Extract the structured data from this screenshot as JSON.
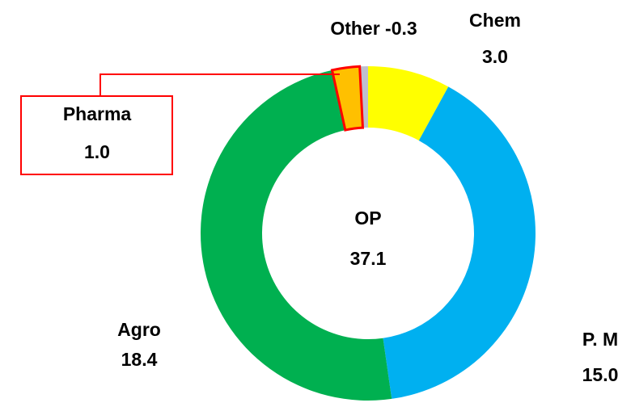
{
  "chart_data": {
    "type": "donut",
    "categories": [
      "Chem",
      "P. M",
      "Agro",
      "Pharma",
      "Other"
    ],
    "values": [
      3.0,
      15.0,
      18.4,
      1.0,
      -0.3
    ],
    "value_labels": [
      "3.0",
      "15.0",
      "18.4",
      "1.0",
      "-0.3"
    ],
    "colors": [
      "#ffff00",
      "#00b0f0",
      "#00b050",
      "#ffc000",
      "#bfbfcf"
    ],
    "highlight": "Pharma",
    "highlight_color": "#ff0000",
    "center_label": "OP",
    "center_value": 37.1
  }
}
